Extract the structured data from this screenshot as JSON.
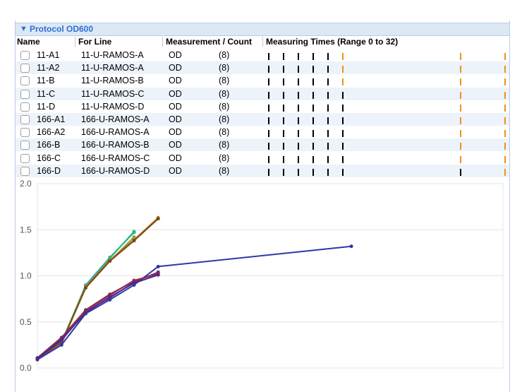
{
  "panel": {
    "title": "Protocol OD600",
    "toggle_icon": "triangle-down-icon"
  },
  "table": {
    "headers": {
      "name": "Name",
      "line": "For Line",
      "measurement": "Measurement / Count",
      "times": "Measuring Times (Range 0 to 32)"
    },
    "times_range": [
      0,
      32
    ],
    "rows": [
      {
        "name": "11-A1",
        "line": "11-U-RAMOS-A",
        "measurement": "OD",
        "count": "(8)",
        "times": [
          0,
          1,
          2,
          3,
          4,
          5,
          13,
          16
        ],
        "colors": [
          "#000",
          "#000",
          "#000",
          "#000",
          "#000",
          "#f0901c",
          "#f0901c",
          "#f0901c"
        ]
      },
      {
        "name": "11-A2",
        "line": "11-U-RAMOS-A",
        "measurement": "OD",
        "count": "(8)",
        "times": [
          0,
          1,
          2,
          3,
          4,
          5,
          13,
          16
        ],
        "colors": [
          "#000",
          "#000",
          "#000",
          "#000",
          "#000",
          "#f0901c",
          "#f0901c",
          "#f0901c"
        ]
      },
      {
        "name": "11-B",
        "line": "11-U-RAMOS-B",
        "measurement": "OD",
        "count": "(8)",
        "times": [
          0,
          1,
          2,
          3,
          4,
          5,
          13,
          16
        ],
        "colors": [
          "#000",
          "#000",
          "#000",
          "#000",
          "#000",
          "#f0901c",
          "#f0901c",
          "#f0901c"
        ]
      },
      {
        "name": "11-C",
        "line": "11-U-RAMOS-C",
        "measurement": "OD",
        "count": "(8)",
        "times": [
          0,
          1,
          2,
          3,
          4,
          5,
          13,
          16
        ],
        "colors": [
          "#000",
          "#000",
          "#000",
          "#000",
          "#000",
          "#000",
          "#f0901c",
          "#f0901c"
        ]
      },
      {
        "name": "11-D",
        "line": "11-U-RAMOS-D",
        "measurement": "OD",
        "count": "(8)",
        "times": [
          0,
          1,
          2,
          3,
          4,
          5,
          13,
          16
        ],
        "colors": [
          "#000",
          "#000",
          "#000",
          "#000",
          "#000",
          "#000",
          "#f0901c",
          "#f0901c"
        ]
      },
      {
        "name": "166-A1",
        "line": "166-U-RAMOS-A",
        "measurement": "OD",
        "count": "(8)",
        "times": [
          0,
          1,
          2,
          3,
          4,
          5,
          13,
          16
        ],
        "colors": [
          "#000",
          "#000",
          "#000",
          "#000",
          "#000",
          "#000",
          "#f0901c",
          "#f0901c"
        ]
      },
      {
        "name": "166-A2",
        "line": "166-U-RAMOS-A",
        "measurement": "OD",
        "count": "(8)",
        "times": [
          0,
          1,
          2,
          3,
          4,
          5,
          13,
          16
        ],
        "colors": [
          "#000",
          "#000",
          "#000",
          "#000",
          "#000",
          "#000",
          "#f0901c",
          "#f0901c"
        ]
      },
      {
        "name": "166-B",
        "line": "166-U-RAMOS-B",
        "measurement": "OD",
        "count": "(8)",
        "times": [
          0,
          1,
          2,
          3,
          4,
          5,
          13,
          16
        ],
        "colors": [
          "#000",
          "#000",
          "#000",
          "#000",
          "#000",
          "#000",
          "#f0901c",
          "#f0901c"
        ]
      },
      {
        "name": "166-C",
        "line": "166-U-RAMOS-C",
        "measurement": "OD",
        "count": "(8)",
        "times": [
          0,
          1,
          2,
          3,
          4,
          5,
          13,
          16
        ],
        "colors": [
          "#000",
          "#000",
          "#000",
          "#000",
          "#000",
          "#000",
          "#f0901c",
          "#f0901c"
        ]
      },
      {
        "name": "166-D",
        "line": "166-U-RAMOS-D",
        "measurement": "OD",
        "count": "(8)",
        "times": [
          0,
          1,
          2,
          3,
          4,
          5,
          13,
          16
        ],
        "colors": [
          "#000",
          "#000",
          "#000",
          "#000",
          "#000",
          "#000",
          "#000",
          "#f0901c"
        ]
      }
    ]
  },
  "chart_data": {
    "type": "line",
    "title": "",
    "xlabel": "",
    "ylabel": "",
    "xlim": [
      0,
      16
    ],
    "ylim": [
      0,
      2.0
    ],
    "yticks": [
      "0.0",
      "0.5",
      "1.0",
      "1.5",
      "2.0"
    ],
    "grid": true,
    "series": [
      {
        "color": "#3aa0d8",
        "x": [
          0,
          1,
          2,
          3,
          4
        ],
        "y": [
          0.1,
          0.27,
          0.9,
          1.2,
          1.47
        ]
      },
      {
        "color": "#2eb87a",
        "x": [
          0,
          1,
          2,
          3,
          4
        ],
        "y": [
          0.1,
          0.28,
          0.89,
          1.19,
          1.48
        ]
      },
      {
        "color": "#8aa030",
        "x": [
          0,
          1,
          2,
          3,
          4
        ],
        "y": [
          0.1,
          0.26,
          0.87,
          1.16,
          1.42
        ]
      },
      {
        "color": "#c07a20",
        "x": [
          0,
          1,
          2,
          3,
          4,
          5
        ],
        "y": [
          0.1,
          0.27,
          0.88,
          1.17,
          1.39,
          1.63
        ]
      },
      {
        "color": "#7a4a1a",
        "x": [
          0,
          1,
          2,
          3,
          4,
          5
        ],
        "y": [
          0.1,
          0.28,
          0.87,
          1.16,
          1.38,
          1.62
        ]
      },
      {
        "color": "#2a3aa8",
        "x": [
          0,
          1,
          2,
          3,
          4,
          5,
          13
        ],
        "y": [
          0.09,
          0.25,
          0.59,
          0.74,
          0.9,
          1.1,
          1.32
        ]
      },
      {
        "color": "#6a2a9a",
        "x": [
          0,
          1,
          2,
          3,
          4,
          5
        ],
        "y": [
          0.1,
          0.3,
          0.61,
          0.76,
          0.93,
          1.04
        ]
      },
      {
        "color": "#a02a7a",
        "x": [
          0,
          1,
          2,
          3,
          4,
          5
        ],
        "y": [
          0.1,
          0.32,
          0.62,
          0.79,
          0.95,
          1.02
        ]
      },
      {
        "color": "#8a2a4a",
        "x": [
          0,
          1,
          2,
          3,
          4,
          5
        ],
        "y": [
          0.11,
          0.33,
          0.63,
          0.8,
          0.94,
          1.03
        ]
      },
      {
        "color": "#4a2a8a",
        "x": [
          0,
          1,
          2,
          3,
          4,
          5
        ],
        "y": [
          0.1,
          0.31,
          0.6,
          0.77,
          0.92,
          1.01
        ]
      }
    ]
  }
}
